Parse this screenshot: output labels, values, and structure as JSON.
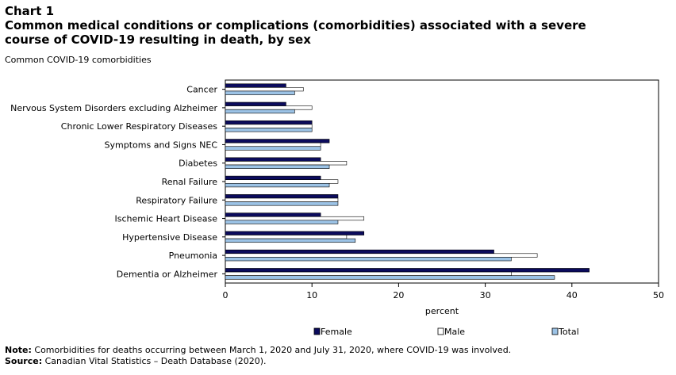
{
  "header": {
    "chart_label": "Chart 1",
    "title": "Common medical conditions or complications (comorbidities) associated with a severe course of COVID-19 resulting in death, by sex",
    "subtitle": "Common COVID-19 comorbidities"
  },
  "colors": {
    "female": "#0b0b5c",
    "male": "#ffffff",
    "total": "#9cc3e6",
    "border": "#000000"
  },
  "chart_data": {
    "type": "bar",
    "orientation": "horizontal",
    "categories": [
      "Cancer",
      "Nervous System Disorders excluding Alzheimer",
      "Chronic Lower Respiratory Diseases",
      "Symptoms and Signs NEC",
      "Diabetes",
      "Renal Failure",
      "Respiratory Failure",
      "Ischemic Heart Disease",
      "Hypertensive Disease",
      "Pneumonia",
      "Dementia or Alzheimer"
    ],
    "series": [
      {
        "name": "Female",
        "values": [
          7,
          7,
          10,
          12,
          11,
          11,
          13,
          11,
          16,
          31,
          42
        ]
      },
      {
        "name": "Male",
        "values": [
          9,
          10,
          10,
          11,
          14,
          13,
          13,
          16,
          14,
          36,
          33
        ]
      },
      {
        "name": "Total",
        "values": [
          8,
          8,
          10,
          11,
          12,
          12,
          13,
          13,
          15,
          33,
          38
        ]
      }
    ],
    "xlabel": "percent",
    "ylabel": "",
    "xlim": [
      0,
      50
    ],
    "xticks": [
      0,
      10,
      20,
      30,
      40,
      50
    ],
    "legend_position": "bottom"
  },
  "footer": {
    "note_label": "Note:",
    "note_text": " Comorbidities for deaths occurring between March 1, 2020 and July 31, 2020, where COVID-19 was involved.",
    "source_label": "Source:",
    "source_text": " Canadian Vital Statistics – Death Database (2020)."
  }
}
